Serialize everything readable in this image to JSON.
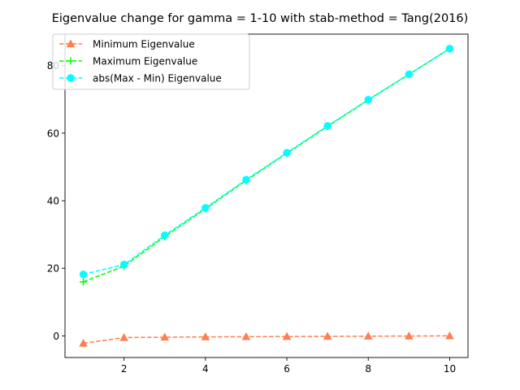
{
  "chart_data": {
    "type": "line",
    "title": "Eigenvalue change for gamma = 1-10 with stab-method = Tang(2016)",
    "xlabel": "",
    "ylabel": "",
    "x": [
      1,
      2,
      3,
      4,
      5,
      6,
      7,
      8,
      9,
      10
    ],
    "xlim": [
      0.55,
      10.45
    ],
    "ylim": [
      -6.4,
      89.3
    ],
    "xticks": [
      2,
      4,
      6,
      8,
      10
    ],
    "yticks": [
      0,
      20,
      40,
      60,
      80
    ],
    "grid": false,
    "legend_position": "upper left",
    "series": [
      {
        "name": "Minimum Eigenvalue",
        "values": [
          -2.2,
          -0.5,
          -0.4,
          -0.3,
          -0.25,
          -0.2,
          -0.15,
          -0.1,
          -0.05,
          0.0
        ],
        "color": "#ff7f50",
        "marker": "triangle",
        "linestyle": "dashed"
      },
      {
        "name": "Maximum Eigenvalue",
        "values": [
          16.0,
          20.6,
          29.4,
          37.6,
          46.0,
          54.0,
          62.0,
          69.8,
          77.4,
          85.0
        ],
        "color": "#00ff00",
        "marker": "plus",
        "linestyle": "dashed"
      },
      {
        "name": "abs(Max - Min) Eigenvalue",
        "values": [
          18.2,
          21.1,
          29.8,
          37.9,
          46.25,
          54.2,
          62.15,
          69.9,
          77.45,
          85.0
        ],
        "color": "#00ffff",
        "marker": "circle",
        "linestyle": "dashed"
      }
    ]
  }
}
